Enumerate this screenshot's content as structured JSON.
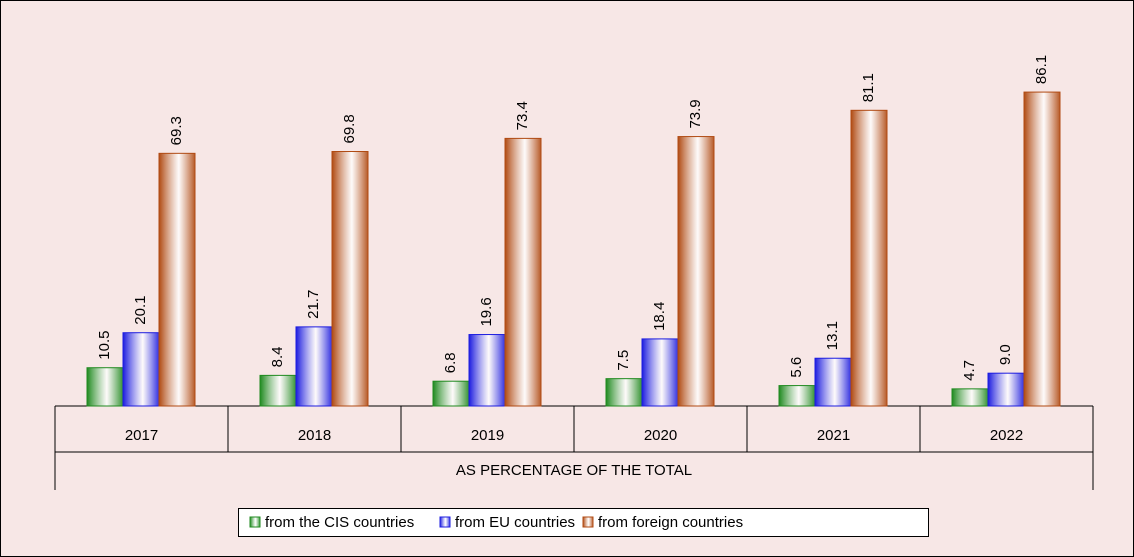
{
  "chart_data": {
    "type": "bar",
    "categories": [
      "2017",
      "2018",
      "2019",
      "2020",
      "2021",
      "2022"
    ],
    "group_label": "AS PERCENTAGE OF THE TOTAL",
    "series": [
      {
        "name": "from the CIS countries",
        "color": "#1f8a1f",
        "values": [
          10.5,
          8.4,
          6.8,
          7.5,
          5.6,
          4.7
        ],
        "value_labels": [
          "10.5",
          "8.4",
          "6.8",
          "7.5",
          "5.6",
          "4.7"
        ]
      },
      {
        "name": "from EU countries",
        "color": "#1c1ce0",
        "values": [
          20.1,
          21.7,
          19.6,
          18.4,
          13.1,
          9.0
        ],
        "value_labels": [
          "20.1",
          "21.7",
          "19.6",
          "18.4",
          "13.1",
          "9.0"
        ]
      },
      {
        "name": "from foreign countries",
        "color": "#b04a12",
        "values": [
          69.3,
          69.8,
          73.4,
          73.9,
          81.1,
          86.1
        ],
        "value_labels": [
          "69.3",
          "69.8",
          "73.4",
          "73.9",
          "81.1",
          "86.1"
        ]
      }
    ],
    "legend": "bottom"
  }
}
